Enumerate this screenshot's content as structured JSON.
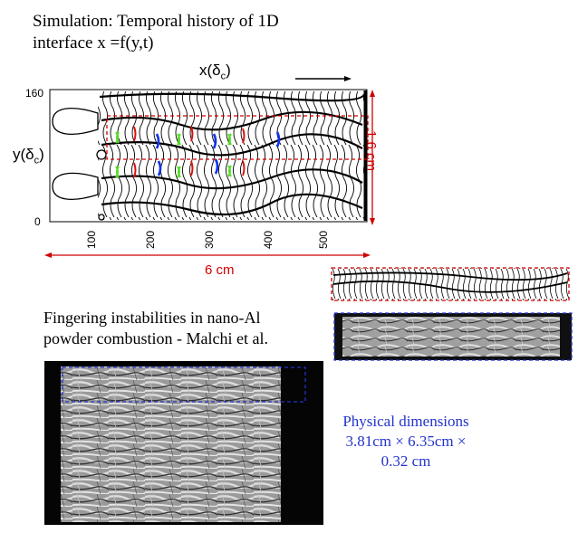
{
  "simulation": {
    "title_line1": "Simulation: Temporal history of 1D",
    "title_line2": "interface x =f(y,t)",
    "xlabel_main": "x(δ",
    "xlabel_sub": "c",
    "xlabel_close": ")",
    "ylabel_main": "y(δ",
    "ylabel_sub": "c",
    "ylabel_close": ")",
    "yticks": [
      "160",
      "0"
    ],
    "xticks": [
      "100",
      "200",
      "300",
      "400",
      "500"
    ],
    "height_dimension": "1.6 cm",
    "width_dimension": "6 cm"
  },
  "experiment": {
    "title_line1": "Fingering instabilities in nano-Al",
    "title_line2": "powder combustion - Malchi et al."
  },
  "physical": {
    "label": "Physical dimensions",
    "line2": "3.81cm × 6.35cm ×",
    "line3": "0.32 cm"
  },
  "colors": {
    "dim_red": "#d00000",
    "box_blue": "#2233cc",
    "green_marks": "#55dd22",
    "red_marks": "#dd1111",
    "blue_marks": "#1133ee"
  }
}
